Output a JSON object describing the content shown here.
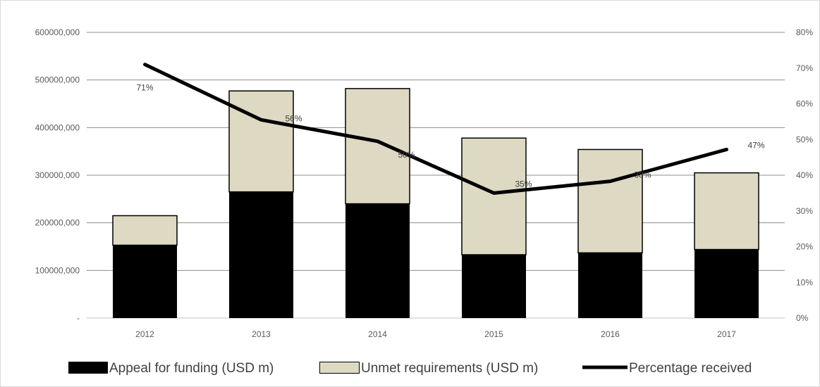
{
  "chart_data": {
    "type": "bar",
    "stacked": true,
    "categories": [
      "2012",
      "2013",
      "2014",
      "2015",
      "2016",
      "2017"
    ],
    "series": [
      {
        "name": "Appeal for funding (USD m)",
        "kind": "bar",
        "axis": "left",
        "color": "#000000",
        "values": [
          153000000,
          265000000,
          240000000,
          133000000,
          137000000,
          144000000
        ]
      },
      {
        "name": "Unmet requirements (USD m)",
        "kind": "bar",
        "axis": "left",
        "color": "#ddd9c3",
        "values": [
          62000000,
          212000000,
          242000000,
          245000000,
          217000000,
          161000000
        ]
      },
      {
        "name": "Percentage received",
        "kind": "line",
        "axis": "right",
        "color": "#000000",
        "values": [
          0.71,
          0.555,
          0.495,
          0.35,
          0.383,
          0.472
        ]
      }
    ],
    "data_labels": [
      "71%",
      "56%",
      "50%",
      "35%",
      "38%",
      "47%"
    ],
    "left_axis": {
      "ylim": [
        0,
        600000000
      ],
      "ticks": [
        0,
        100000000,
        200000000,
        300000000,
        400000000,
        500000000,
        600000000
      ],
      "tick_labels": [
        "-",
        "100000,000",
        "200000,000",
        "300000,000",
        "400000,000",
        "500000,000",
        "600000,000"
      ]
    },
    "right_axis": {
      "ylim": [
        0,
        0.8
      ],
      "ticks": [
        0,
        0.1,
        0.2,
        0.3,
        0.4,
        0.5,
        0.6,
        0.7,
        0.8
      ],
      "tick_labels": [
        "0%",
        "10%",
        "20%",
        "30%",
        "40%",
        "50%",
        "60%",
        "70%",
        "80%"
      ]
    },
    "grid": true,
    "legend_position": "bottom"
  }
}
